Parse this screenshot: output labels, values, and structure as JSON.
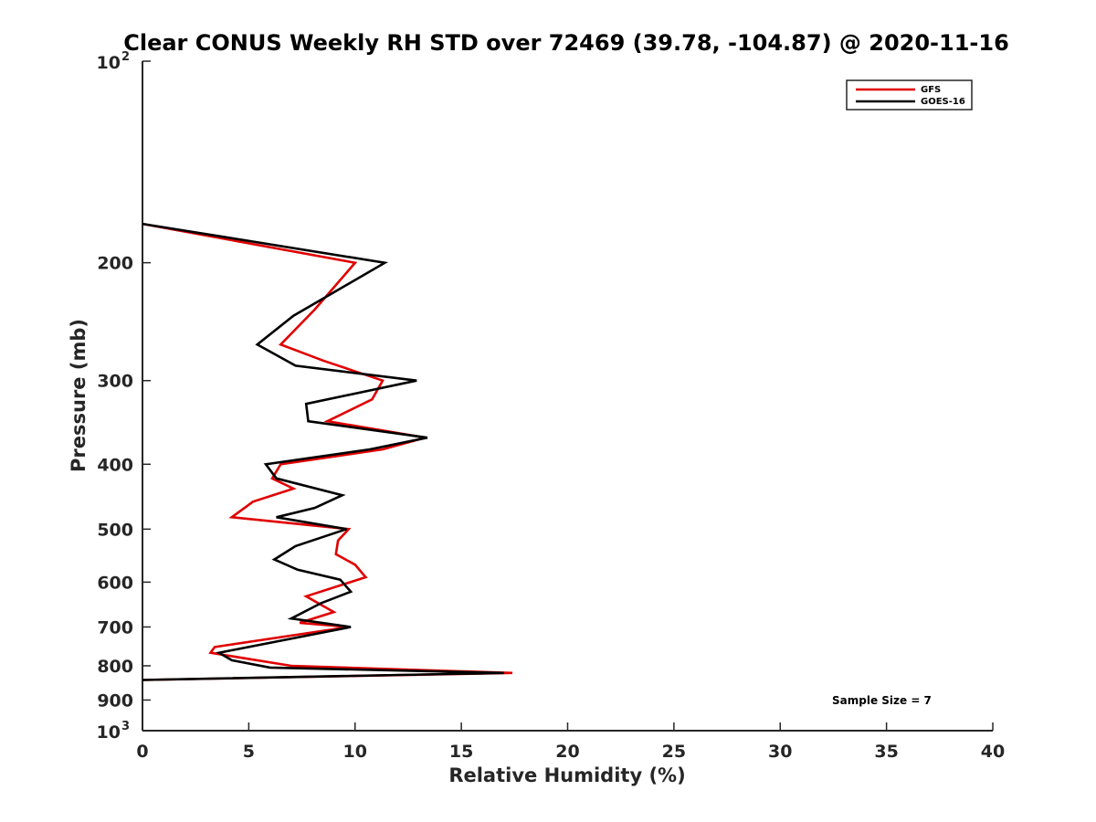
{
  "chart_data": {
    "type": "line",
    "title": "Clear CONUS Weekly RH STD over 72469 (39.78, -104.87) @ 2020-11-16",
    "xlabel": "Relative Humidity (%)",
    "ylabel": "Pressure (mb)",
    "xlim": [
      0,
      40
    ],
    "ylim": [
      100,
      1000
    ],
    "y_scale": "log",
    "y_reversed": true,
    "x_ticks": [
      0,
      5,
      10,
      15,
      20,
      25,
      30,
      35,
      40
    ],
    "y_ticks": [
      {
        "value": 100,
        "label_base": "10",
        "label_exp": "2"
      },
      {
        "value": 200,
        "label": "200"
      },
      {
        "value": 300,
        "label": "300"
      },
      {
        "value": 400,
        "label": "400"
      },
      {
        "value": 500,
        "label": "500"
      },
      {
        "value": 600,
        "label": "600"
      },
      {
        "value": 700,
        "label": "700"
      },
      {
        "value": 800,
        "label": "800"
      },
      {
        "value": 900,
        "label": "900"
      },
      {
        "value": 1000,
        "label_base": "10",
        "label_exp": "3"
      }
    ],
    "grid": false,
    "legend_position": "top-right",
    "annotation": "Sample Size = 7",
    "series": [
      {
        "name": "GFS",
        "color": "#e00000",
        "points": [
          [
            0.0,
            175
          ],
          [
            10.0,
            200
          ],
          [
            8.1,
            235
          ],
          [
            6.5,
            265
          ],
          [
            8.5,
            280
          ],
          [
            11.3,
            300
          ],
          [
            10.8,
            320
          ],
          [
            8.7,
            345
          ],
          [
            13.3,
            365
          ],
          [
            11.3,
            380
          ],
          [
            6.5,
            400
          ],
          [
            6.1,
            420
          ],
          [
            7.1,
            435
          ],
          [
            5.2,
            455
          ],
          [
            4.2,
            480
          ],
          [
            9.7,
            500
          ],
          [
            9.2,
            520
          ],
          [
            9.1,
            545
          ],
          [
            10.0,
            565
          ],
          [
            10.5,
            590
          ],
          [
            7.7,
            630
          ],
          [
            9.0,
            665
          ],
          [
            7.4,
            690
          ],
          [
            9.7,
            700
          ],
          [
            3.4,
            750
          ],
          [
            3.2,
            765
          ],
          [
            7.0,
            800
          ],
          [
            17.4,
            820
          ],
          [
            0.0,
            840
          ]
        ]
      },
      {
        "name": "GOES-16",
        "color": "#000000",
        "points": [
          [
            0.0,
            175
          ],
          [
            11.4,
            200
          ],
          [
            7.1,
            240
          ],
          [
            5.4,
            265
          ],
          [
            7.2,
            285
          ],
          [
            12.9,
            300
          ],
          [
            7.7,
            325
          ],
          [
            7.8,
            345
          ],
          [
            13.4,
            365
          ],
          [
            10.7,
            380
          ],
          [
            5.8,
            400
          ],
          [
            6.3,
            420
          ],
          [
            9.4,
            445
          ],
          [
            8.1,
            465
          ],
          [
            6.3,
            480
          ],
          [
            9.6,
            500
          ],
          [
            7.2,
            530
          ],
          [
            6.2,
            555
          ],
          [
            7.3,
            575
          ],
          [
            9.3,
            595
          ],
          [
            9.8,
            620
          ],
          [
            8.4,
            645
          ],
          [
            7.0,
            680
          ],
          [
            9.8,
            700
          ],
          [
            3.6,
            765
          ],
          [
            4.2,
            785
          ],
          [
            6.0,
            805
          ],
          [
            17.0,
            820
          ],
          [
            0.0,
            840
          ]
        ]
      }
    ]
  }
}
